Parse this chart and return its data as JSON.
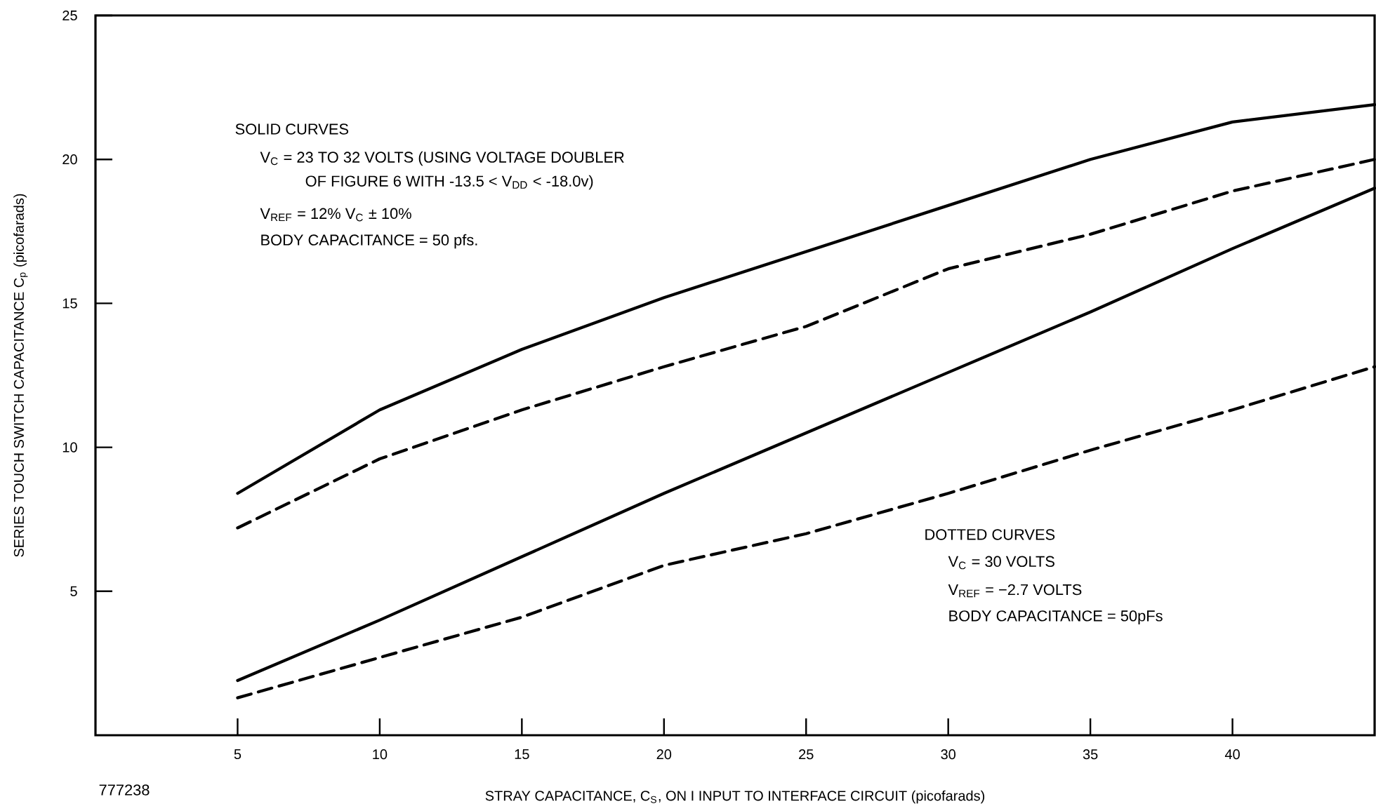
{
  "chart_data": {
    "type": "line",
    "xlabel": "STRAY CAPACITANCE, C$_{S}$, ON I INPUT TO INTERFACE CIRCUIT (picofarads)",
    "ylabel": "SERIES TOUCH SWITCH CAPACITANCE C$_{p}$ (picofarads)",
    "x": [
      5,
      10,
      15,
      20,
      25,
      30,
      35,
      40,
      45
    ],
    "series": [
      {
        "color": "#000000",
        "line_style": "solid",
        "values": [
          8.4,
          11.3,
          13.4,
          15.2,
          16.8,
          18.4,
          20.0,
          21.3,
          21.9
        ]
      },
      {
        "color": "#000000",
        "line_style": "dashed",
        "values": [
          7.2,
          9.6,
          11.3,
          12.8,
          14.2,
          16.2,
          17.4,
          18.9,
          20.0
        ]
      },
      {
        "color": "#000000",
        "line_style": "solid",
        "values": [
          1.9,
          4.0,
          6.2,
          8.4,
          10.5,
          12.6,
          14.7,
          16.9,
          19.0
        ]
      },
      {
        "color": "#000000",
        "line_style": "dashed",
        "values": [
          1.3,
          2.7,
          4.1,
          5.9,
          7.0,
          8.4,
          9.9,
          11.3,
          12.8
        ]
      }
    ],
    "xlim": [
      0,
      45
    ],
    "ylim": [
      0,
      25
    ],
    "xticks": [
      5,
      10,
      15,
      20,
      25,
      30,
      35,
      40
    ],
    "yticks": [
      5,
      10,
      15,
      20,
      25
    ],
    "annotations": [
      "SOLID CURVES",
      "V$_{C}$ = 23 TO 32 VOLTS (USING VOLTAGE DOUBLER",
      "OF FIGURE 6 WITH -13.5 < V$_{DD}$ < -18.0v)",
      "V$_{REF}$ = 12% V$_{C}$ ± 10%",
      "BODY CAPACITANCE = 50 pfs.",
      "DOTTED CURVES",
      "V$_{C}$ = 30 VOLTS",
      "V$_{REF}$ = −2.7 VOLTS",
      "BODY CAPACITANCE = 50pFs",
      "777238"
    ]
  }
}
